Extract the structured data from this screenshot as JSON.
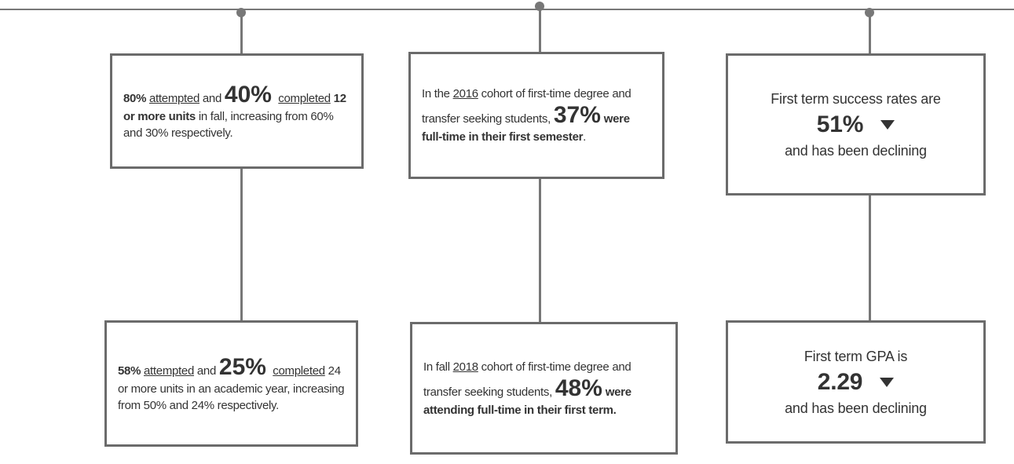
{
  "boxes": [
    {
      "segments": [
        "80% ",
        "attempted",
        " and ",
        "40% ",
        "completed",
        " 12 or more units",
        " in fall, increasing from 60% and 30% respectively."
      ]
    },
    {
      "segments": [
        "In the ",
        "2016",
        " cohort of first-time degree and transfer seeking students, ",
        "37%",
        " were full-time in their first semester",
        "."
      ]
    },
    {
      "segments": [
        "First term success rates are",
        "51%",
        "and has been declining"
      ]
    },
    {
      "segments": [
        "58% ",
        "attempted",
        " and ",
        "25% ",
        "completed",
        " 24 or more units in an academic year, increasing from 50% and 24% respectively."
      ]
    },
    {
      "segments": [
        "In fall ",
        "2018",
        " cohort of first-time degree and transfer seeking students, ",
        "48%",
        " were attending full-time in their first term."
      ]
    },
    {
      "segments": [
        "First term GPA is",
        "2.29",
        "and has been declining"
      ]
    }
  ]
}
